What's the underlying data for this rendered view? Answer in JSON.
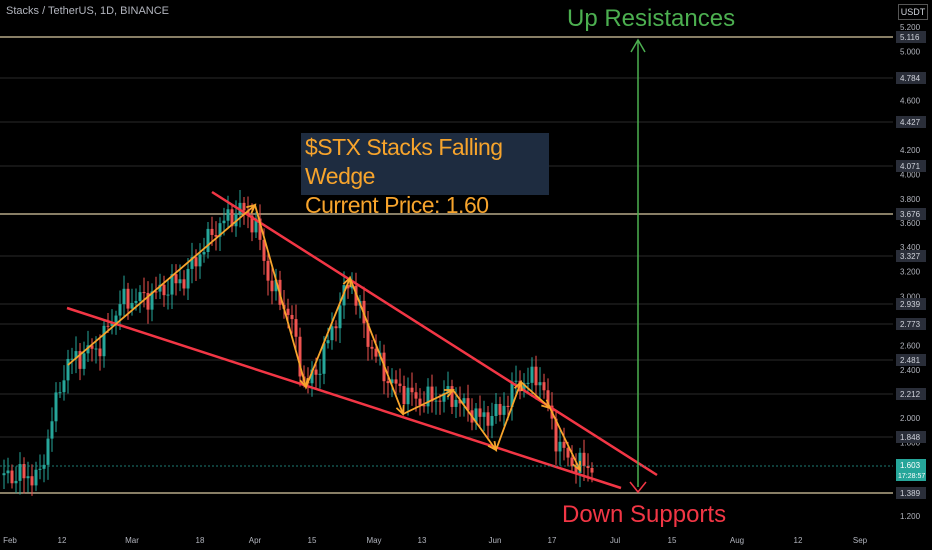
{
  "header": {
    "symbol_line": "Stacks / TetherUS, 1D, BINANCE",
    "unit": "USDT"
  },
  "colors": {
    "background": "#000000",
    "up_candle": "#26a69a",
    "down_candle": "#ef5350",
    "wedge_lines": "#f23645",
    "zigzag": "#f7a42c",
    "resistance_arrow": "#4caf50",
    "level_lines": "#d9c9a3",
    "axis_text": "#b2b5be"
  },
  "annotations": {
    "title_line1": "$STX Stacks Falling Wedge",
    "title_line2": "Current Price: 1.60",
    "up_label": "Up Resistances",
    "down_label": "Down Supports"
  },
  "chart_data": {
    "type": "candlestick",
    "x_axis_ticks": [
      "Feb",
      "12",
      "Mar",
      "18",
      "Apr",
      "15",
      "May",
      "13",
      "Jun",
      "17",
      "Jul",
      "15",
      "Aug",
      "12",
      "Sep"
    ],
    "y_axis_ticks": [
      "5.200",
      "5.000",
      "4.600",
      "4.200",
      "4.000",
      "3.800",
      "3.600",
      "3.400",
      "3.200",
      "3.000",
      "2.600",
      "2.400",
      "2.000",
      "1.800",
      "1.200"
    ],
    "horizontal_levels": [
      "5.116",
      "4.784",
      "4.427",
      "4.071",
      "3.676",
      "3.327",
      "2.939",
      "2.773",
      "2.481",
      "2.212",
      "1.848",
      "1.389"
    ],
    "current_price": "1.603",
    "countdown": "17:28:57",
    "ylim": [
      1.1,
      5.35
    ]
  }
}
